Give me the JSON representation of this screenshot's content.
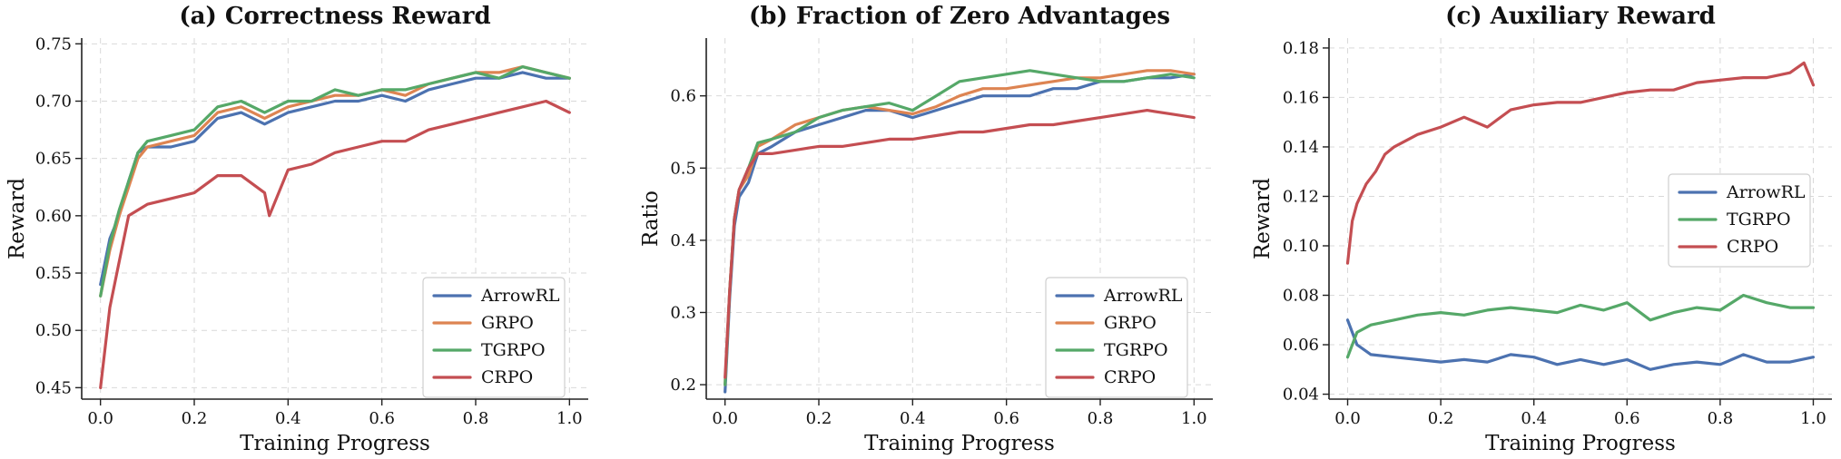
{
  "colors": {
    "ArrowRL": "#4C72B0",
    "GRPO": "#DD8452",
    "TGRPO": "#55A868",
    "CRPO": "#C44E52"
  },
  "chart_data": [
    {
      "type": "line",
      "title": "(a) Correctness Reward",
      "xlabel": "Training Progress",
      "ylabel": "Reward",
      "xlim": [
        -0.04,
        1.04
      ],
      "ylim": [
        0.44,
        0.755
      ],
      "xticks": [
        0.0,
        0.2,
        0.4,
        0.6,
        0.8,
        1.0
      ],
      "xtick_labels": [
        "0.0",
        "0.2",
        "0.4",
        "0.6",
        "0.8",
        "1.0"
      ],
      "yticks": [
        0.45,
        0.5,
        0.55,
        0.6,
        0.65,
        0.7,
        0.75
      ],
      "ytick_labels": [
        "0.45",
        "0.50",
        "0.55",
        "0.60",
        "0.65",
        "0.70",
        "0.75"
      ],
      "grid": true,
      "legend": "lower right",
      "series": [
        {
          "name": "ArrowRL",
          "x": [
            0.0,
            0.02,
            0.04,
            0.06,
            0.08,
            0.1,
            0.15,
            0.2,
            0.25,
            0.3,
            0.35,
            0.4,
            0.45,
            0.5,
            0.55,
            0.6,
            0.65,
            0.7,
            0.75,
            0.8,
            0.85,
            0.9,
            0.95,
            1.0
          ],
          "y": [
            0.54,
            0.58,
            0.6,
            0.63,
            0.655,
            0.66,
            0.66,
            0.665,
            0.685,
            0.69,
            0.68,
            0.69,
            0.695,
            0.7,
            0.7,
            0.705,
            0.7,
            0.71,
            0.715,
            0.72,
            0.72,
            0.725,
            0.72,
            0.72
          ]
        },
        {
          "name": "GRPO",
          "x": [
            0.0,
            0.02,
            0.04,
            0.06,
            0.08,
            0.1,
            0.15,
            0.2,
            0.25,
            0.3,
            0.35,
            0.4,
            0.45,
            0.5,
            0.55,
            0.6,
            0.65,
            0.7,
            0.75,
            0.8,
            0.85,
            0.9,
            0.95,
            1.0
          ],
          "y": [
            0.53,
            0.57,
            0.6,
            0.625,
            0.65,
            0.66,
            0.665,
            0.67,
            0.69,
            0.695,
            0.685,
            0.695,
            0.7,
            0.705,
            0.705,
            0.71,
            0.705,
            0.715,
            0.72,
            0.725,
            0.725,
            0.73,
            0.725,
            0.72
          ]
        },
        {
          "name": "TGRPO",
          "x": [
            0.0,
            0.02,
            0.04,
            0.06,
            0.08,
            0.1,
            0.15,
            0.2,
            0.25,
            0.3,
            0.35,
            0.4,
            0.45,
            0.5,
            0.55,
            0.6,
            0.65,
            0.7,
            0.75,
            0.8,
            0.85,
            0.9,
            0.95,
            1.0
          ],
          "y": [
            0.53,
            0.575,
            0.605,
            0.63,
            0.655,
            0.665,
            0.67,
            0.675,
            0.695,
            0.7,
            0.69,
            0.7,
            0.7,
            0.71,
            0.705,
            0.71,
            0.71,
            0.715,
            0.72,
            0.725,
            0.72,
            0.73,
            0.725,
            0.72
          ]
        },
        {
          "name": "CRPO",
          "x": [
            0.0,
            0.02,
            0.04,
            0.06,
            0.08,
            0.1,
            0.15,
            0.2,
            0.25,
            0.3,
            0.35,
            0.36,
            0.4,
            0.45,
            0.5,
            0.55,
            0.6,
            0.65,
            0.7,
            0.75,
            0.8,
            0.85,
            0.9,
            0.95,
            1.0
          ],
          "y": [
            0.45,
            0.52,
            0.56,
            0.6,
            0.605,
            0.61,
            0.615,
            0.62,
            0.635,
            0.635,
            0.62,
            0.6,
            0.64,
            0.645,
            0.655,
            0.66,
            0.665,
            0.665,
            0.675,
            0.68,
            0.685,
            0.69,
            0.695,
            0.7,
            0.69
          ]
        }
      ]
    },
    {
      "type": "line",
      "title": "(b) Fraction of Zero Advantages",
      "xlabel": "Training Progress",
      "ylabel": "Ratio",
      "xlim": [
        -0.04,
        1.04
      ],
      "ylim": [
        0.18,
        0.68
      ],
      "xticks": [
        0.0,
        0.2,
        0.4,
        0.6,
        0.8,
        1.0
      ],
      "xtick_labels": [
        "0.0",
        "0.2",
        "0.4",
        "0.6",
        "0.8",
        "1.0"
      ],
      "yticks": [
        0.2,
        0.3,
        0.4,
        0.5,
        0.6
      ],
      "ytick_labels": [
        "0.2",
        "0.3",
        "0.4",
        "0.5",
        "0.6"
      ],
      "grid": true,
      "legend": "lower right",
      "series": [
        {
          "name": "ArrowRL",
          "x": [
            0.0,
            0.01,
            0.02,
            0.03,
            0.05,
            0.07,
            0.1,
            0.15,
            0.2,
            0.25,
            0.3,
            0.35,
            0.4,
            0.45,
            0.5,
            0.55,
            0.6,
            0.65,
            0.7,
            0.75,
            0.8,
            0.85,
            0.9,
            0.95,
            1.0
          ],
          "y": [
            0.19,
            0.32,
            0.42,
            0.46,
            0.48,
            0.52,
            0.53,
            0.55,
            0.56,
            0.57,
            0.58,
            0.58,
            0.57,
            0.58,
            0.59,
            0.6,
            0.6,
            0.6,
            0.61,
            0.61,
            0.62,
            0.62,
            0.625,
            0.625,
            0.63
          ]
        },
        {
          "name": "GRPO",
          "x": [
            0.0,
            0.01,
            0.02,
            0.03,
            0.05,
            0.07,
            0.1,
            0.15,
            0.2,
            0.25,
            0.3,
            0.35,
            0.4,
            0.45,
            0.5,
            0.55,
            0.6,
            0.65,
            0.7,
            0.75,
            0.8,
            0.85,
            0.9,
            0.95,
            1.0
          ],
          "y": [
            0.2,
            0.33,
            0.43,
            0.47,
            0.49,
            0.53,
            0.54,
            0.56,
            0.57,
            0.58,
            0.585,
            0.58,
            0.575,
            0.585,
            0.6,
            0.61,
            0.61,
            0.615,
            0.62,
            0.625,
            0.625,
            0.63,
            0.635,
            0.635,
            0.63
          ]
        },
        {
          "name": "TGRPO",
          "x": [
            0.0,
            0.01,
            0.02,
            0.03,
            0.05,
            0.07,
            0.1,
            0.15,
            0.2,
            0.25,
            0.3,
            0.35,
            0.4,
            0.45,
            0.5,
            0.55,
            0.6,
            0.65,
            0.7,
            0.75,
            0.8,
            0.85,
            0.9,
            0.95,
            1.0
          ],
          "y": [
            0.2,
            0.33,
            0.43,
            0.47,
            0.5,
            0.535,
            0.54,
            0.55,
            0.57,
            0.58,
            0.585,
            0.59,
            0.58,
            0.6,
            0.62,
            0.625,
            0.63,
            0.635,
            0.63,
            0.625,
            0.62,
            0.62,
            0.625,
            0.63,
            0.625
          ]
        },
        {
          "name": "CRPO",
          "x": [
            0.0,
            0.01,
            0.02,
            0.03,
            0.05,
            0.07,
            0.1,
            0.15,
            0.2,
            0.25,
            0.3,
            0.35,
            0.4,
            0.45,
            0.5,
            0.55,
            0.6,
            0.65,
            0.7,
            0.75,
            0.8,
            0.85,
            0.9,
            0.95,
            1.0
          ],
          "y": [
            0.21,
            0.33,
            0.43,
            0.47,
            0.5,
            0.52,
            0.52,
            0.525,
            0.53,
            0.53,
            0.535,
            0.54,
            0.54,
            0.545,
            0.55,
            0.55,
            0.555,
            0.56,
            0.56,
            0.565,
            0.57,
            0.575,
            0.58,
            0.575,
            0.57
          ]
        }
      ]
    },
    {
      "type": "line",
      "title": "(c) Auxiliary Reward",
      "xlabel": "Training Progress",
      "ylabel": "Reward",
      "xlim": [
        -0.04,
        1.04
      ],
      "ylim": [
        0.038,
        0.184
      ],
      "xticks": [
        0.0,
        0.2,
        0.4,
        0.6,
        0.8,
        1.0
      ],
      "xtick_labels": [
        "0.0",
        "0.2",
        "0.4",
        "0.6",
        "0.8",
        "1.0"
      ],
      "yticks": [
        0.04,
        0.06,
        0.08,
        0.1,
        0.12,
        0.14,
        0.16,
        0.18
      ],
      "ytick_labels": [
        "0.04",
        "0.06",
        "0.08",
        "0.10",
        "0.12",
        "0.14",
        "0.16",
        "0.18"
      ],
      "grid": true,
      "legend": "center right",
      "series": [
        {
          "name": "ArrowRL",
          "x": [
            0.0,
            0.02,
            0.05,
            0.1,
            0.15,
            0.2,
            0.25,
            0.3,
            0.35,
            0.4,
            0.45,
            0.5,
            0.55,
            0.6,
            0.65,
            0.7,
            0.75,
            0.8,
            0.85,
            0.9,
            0.95,
            1.0
          ],
          "y": [
            0.07,
            0.06,
            0.056,
            0.055,
            0.054,
            0.053,
            0.054,
            0.053,
            0.056,
            0.055,
            0.052,
            0.054,
            0.052,
            0.054,
            0.05,
            0.052,
            0.053,
            0.052,
            0.056,
            0.053,
            0.053,
            0.055
          ]
        },
        {
          "name": "TGRPO",
          "x": [
            0.0,
            0.02,
            0.05,
            0.1,
            0.15,
            0.2,
            0.25,
            0.3,
            0.35,
            0.4,
            0.45,
            0.5,
            0.55,
            0.6,
            0.65,
            0.7,
            0.75,
            0.8,
            0.85,
            0.9,
            0.95,
            1.0
          ],
          "y": [
            0.055,
            0.065,
            0.068,
            0.07,
            0.072,
            0.073,
            0.072,
            0.074,
            0.075,
            0.074,
            0.073,
            0.076,
            0.074,
            0.077,
            0.07,
            0.073,
            0.075,
            0.074,
            0.08,
            0.077,
            0.075,
            0.075
          ]
        },
        {
          "name": "CRPO",
          "x": [
            0.0,
            0.01,
            0.02,
            0.04,
            0.06,
            0.08,
            0.1,
            0.15,
            0.2,
            0.25,
            0.3,
            0.35,
            0.4,
            0.45,
            0.5,
            0.55,
            0.6,
            0.65,
            0.7,
            0.75,
            0.8,
            0.85,
            0.9,
            0.95,
            0.98,
            1.0
          ],
          "y": [
            0.093,
            0.11,
            0.117,
            0.125,
            0.13,
            0.137,
            0.14,
            0.145,
            0.148,
            0.152,
            0.148,
            0.155,
            0.157,
            0.158,
            0.158,
            0.16,
            0.162,
            0.163,
            0.163,
            0.166,
            0.167,
            0.168,
            0.168,
            0.17,
            0.174,
            0.165
          ]
        }
      ]
    }
  ]
}
